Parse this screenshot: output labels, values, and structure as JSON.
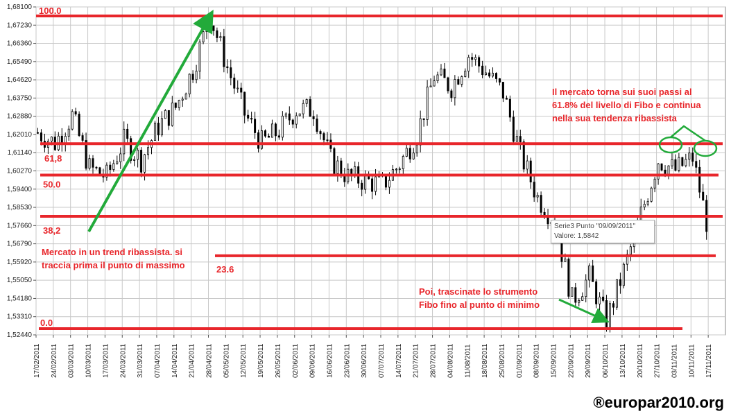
{
  "chart_data": {
    "type": "candlestick",
    "title": "",
    "xlabel": "",
    "ylabel": "",
    "ylim": [
      1.5244,
      1.681
    ],
    "y_ticks": [
      "1,52440",
      "1,53310",
      "1,54180",
      "1,55050",
      "1,55920",
      "1,56790",
      "1,57660",
      "1,58530",
      "1,59400",
      "1,60270",
      "1,61140",
      "1,62010",
      "1,62880",
      "1,63750",
      "1,64620",
      "1,65490",
      "1,66360",
      "1,67230",
      "1,68100"
    ],
    "x_ticks": [
      "17/02/2011",
      "24/02/2011",
      "03/03/2011",
      "10/03/2011",
      "17/03/2011",
      "24/03/2011",
      "31/03/2011",
      "07/04/2011",
      "14/04/2011",
      "21/04/2011",
      "28/04/2011",
      "05/05/2011",
      "12/05/2011",
      "19/05/2011",
      "26/05/2011",
      "02/06/2011",
      "09/06/2011",
      "16/06/2011",
      "23/06/2011",
      "30/06/2011",
      "07/07/2011",
      "14/07/2011",
      "21/07/2011",
      "28/07/2011",
      "04/08/2011",
      "11/08/2011",
      "18/08/2011",
      "25/08/2011",
      "01/09/2011",
      "08/09/2011",
      "15/09/2011",
      "22/09/2011",
      "29/09/2011",
      "06/10/2011",
      "13/10/2011",
      "20/10/2011",
      "27/10/2011",
      "03/11/2011",
      "10/11/2011",
      "17/11/2011"
    ],
    "grid": true,
    "close_path": [
      [
        0,
        1.621
      ],
      [
        1,
        1.616
      ],
      [
        2,
        1.629
      ],
      [
        3,
        1.604
      ],
      [
        4,
        1.6
      ],
      [
        5,
        1.617
      ],
      [
        6,
        1.608
      ],
      [
        7,
        1.624
      ],
      [
        8,
        1.633
      ],
      [
        9,
        1.651
      ],
      [
        10,
        1.677
      ],
      [
        11,
        1.652
      ],
      [
        12,
        1.63
      ],
      [
        13,
        1.616
      ],
      [
        14,
        1.622
      ],
      [
        15,
        1.632
      ],
      [
        16,
        1.632
      ],
      [
        17,
        1.608
      ],
      [
        18,
        1.6
      ],
      [
        19,
        1.598
      ],
      [
        20,
        1.596
      ],
      [
        21,
        1.606
      ],
      [
        22,
        1.62
      ],
      [
        23,
        1.648
      ],
      [
        24,
        1.643
      ],
      [
        25,
        1.658
      ],
      [
        26,
        1.65
      ],
      [
        27,
        1.64
      ],
      [
        28,
        1.611
      ],
      [
        29,
        1.59
      ],
      [
        30,
        1.579
      ],
      [
        31,
        1.541
      ],
      [
        32,
        1.552
      ],
      [
        33,
        1.531
      ],
      [
        34,
        1.555
      ],
      [
        35,
        1.582
      ],
      [
        36,
        1.608
      ],
      [
        37,
        1.603
      ],
      [
        38,
        1.609
      ],
      [
        39,
        1.571
      ]
    ],
    "fibo_levels": [
      {
        "label": "100.0",
        "value": 1.6767
      },
      {
        "label": "61,8",
        "value": 1.6157
      },
      {
        "label": "50.0",
        "value": 1.6007
      },
      {
        "label": "38,2",
        "value": 1.581
      },
      {
        "label": "23.6",
        "value": 1.5622
      },
      {
        "label": "0.0",
        "value": 1.5274
      }
    ],
    "annotations": {
      "top_right": [
        "Il mercato torna sui suoi passi al",
        "61.8% del livello di Fibo e continua",
        "nella sua tendenza ribassista"
      ],
      "left": [
        "Mercato in un trend ribassista. si",
        "traccia prima il punto di massimo"
      ],
      "bottom": [
        "Poi, trascinate lo strumento",
        "Fibo fino al punto di minimo"
      ]
    },
    "tooltip": {
      "line1": "Serie3 Punto \"09/09/2011\"",
      "line2": "Valore: 1,5842"
    }
  },
  "colors": {
    "fibo": "#e8262b",
    "arrow": "#22aa3a",
    "candle": "#000000",
    "grid": "#c8c8c8"
  },
  "watermark": "®europar2010.org"
}
